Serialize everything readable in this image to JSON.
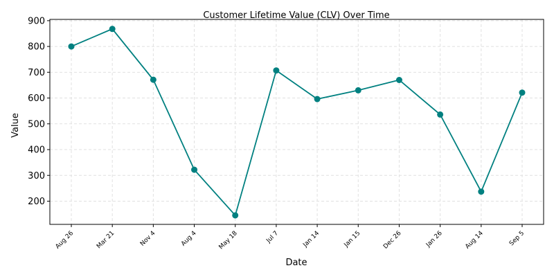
{
  "chart_data": {
    "type": "line",
    "title": "Customer Lifetime Value (CLV) Over Time",
    "xlabel": "Date",
    "ylabel": "Value",
    "categories": [
      "Aug 26",
      "Mar 21",
      "Nov 4",
      "Aug 4",
      "May 18",
      "Jul 7",
      "Jan 14",
      "Jan 15",
      "Dec 26",
      "Jan 26",
      "Aug 14",
      "Sep 5"
    ],
    "values": [
      800,
      868,
      671,
      322,
      145,
      707,
      596,
      630,
      670,
      536,
      237,
      621
    ],
    "ylim": [
      110,
      905
    ],
    "yticks": [
      200,
      300,
      400,
      500,
      600,
      700,
      800,
      900
    ],
    "grid": true,
    "line_color": "#008080",
    "marker": "circle"
  }
}
